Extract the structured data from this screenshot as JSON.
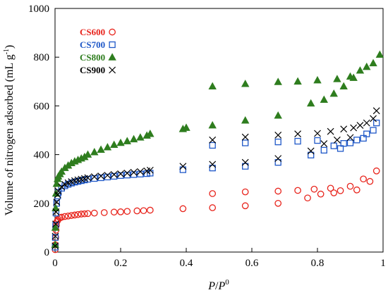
{
  "chart_data": {
    "type": "scatter",
    "xlabel_parts": [
      "P",
      "/",
      "P",
      "0"
    ],
    "ylabel_main": "Volume of nitrogen adsorbed (mL g",
    "ylabel_sup": "-1",
    "ylabel_close": ")",
    "xlim": [
      0,
      1
    ],
    "ylim": [
      0,
      1000
    ],
    "xticks": [
      0,
      0.2,
      0.4,
      0.6,
      0.8,
      1
    ],
    "xtick_labels": [
      "0",
      "0.2",
      "0.4",
      "0.6",
      "0.8",
      "1"
    ],
    "yticks": [
      0,
      200,
      400,
      600,
      800,
      1000
    ],
    "ytick_labels": [
      "0",
      "200",
      "400",
      "600",
      "800",
      "1000"
    ],
    "grid": false,
    "legend_placement": "top-left",
    "series": [
      {
        "name": "CS600",
        "marker": "circle",
        "color": "#e8241c",
        "x": [
          0.0005,
          0.001,
          0.002,
          0.003,
          0.004,
          0.006,
          0.008,
          0.01,
          0.015,
          0.02,
          0.03,
          0.04,
          0.05,
          0.06,
          0.07,
          0.08,
          0.09,
          0.1,
          0.12,
          0.15,
          0.18,
          0.2,
          0.22,
          0.25,
          0.27,
          0.29,
          0.39,
          0.48,
          0.48,
          0.58,
          0.58,
          0.68,
          0.68,
          0.74,
          0.77,
          0.79,
          0.81,
          0.84,
          0.85,
          0.87,
          0.9,
          0.92,
          0.94,
          0.96,
          0.98
        ],
        "y": [
          10,
          30,
          60,
          90,
          110,
          125,
          130,
          135,
          140,
          143,
          146,
          148,
          150,
          152,
          154,
          156,
          157,
          158,
          160,
          162,
          164,
          165,
          167,
          169,
          170,
          172,
          178,
          182,
          240,
          190,
          247,
          200,
          250,
          253,
          222,
          258,
          238,
          262,
          243,
          252,
          270,
          255,
          300,
          290,
          333
        ]
      },
      {
        "name": "CS700",
        "marker": "square",
        "color": "#1f58c8",
        "x": [
          0.0005,
          0.001,
          0.002,
          0.003,
          0.005,
          0.008,
          0.01,
          0.02,
          0.03,
          0.04,
          0.05,
          0.06,
          0.07,
          0.08,
          0.09,
          0.1,
          0.12,
          0.14,
          0.16,
          0.18,
          0.2,
          0.22,
          0.24,
          0.26,
          0.28,
          0.29,
          0.39,
          0.48,
          0.48,
          0.58,
          0.58,
          0.68,
          0.68,
          0.74,
          0.78,
          0.8,
          0.82,
          0.85,
          0.87,
          0.88,
          0.9,
          0.92,
          0.94,
          0.95,
          0.97,
          0.98
        ],
        "y": [
          20,
          60,
          110,
          160,
          200,
          230,
          245,
          262,
          272,
          278,
          283,
          287,
          290,
          293,
          296,
          299,
          302,
          305,
          308,
          311,
          314,
          316,
          318,
          320,
          322,
          324,
          338,
          345,
          438,
          352,
          448,
          368,
          452,
          455,
          398,
          458,
          418,
          436,
          425,
          446,
          448,
          460,
          467,
          485,
          500,
          530
        ]
      },
      {
        "name": "CS800",
        "marker": "triangle",
        "color": "#2e7d1e",
        "x": [
          0.0005,
          0.001,
          0.002,
          0.003,
          0.005,
          0.008,
          0.01,
          0.015,
          0.02,
          0.03,
          0.04,
          0.05,
          0.06,
          0.07,
          0.08,
          0.09,
          0.1,
          0.12,
          0.14,
          0.16,
          0.18,
          0.2,
          0.22,
          0.24,
          0.26,
          0.28,
          0.29,
          0.39,
          0.4,
          0.48,
          0.48,
          0.58,
          0.58,
          0.68,
          0.68,
          0.74,
          0.78,
          0.8,
          0.82,
          0.85,
          0.86,
          0.88,
          0.9,
          0.91,
          0.93,
          0.95,
          0.97,
          0.99
        ],
        "y": [
          30,
          100,
          180,
          240,
          280,
          300,
          310,
          320,
          330,
          345,
          355,
          365,
          372,
          378,
          384,
          390,
          400,
          410,
          420,
          430,
          440,
          448,
          455,
          463,
          470,
          478,
          485,
          505,
          510,
          520,
          680,
          540,
          690,
          560,
          698,
          700,
          610,
          705,
          625,
          650,
          710,
          680,
          720,
          715,
          745,
          760,
          775,
          810
        ]
      },
      {
        "name": "CS900",
        "marker": "x",
        "color": "#000000",
        "x": [
          0.0005,
          0.001,
          0.002,
          0.003,
          0.005,
          0.008,
          0.01,
          0.02,
          0.03,
          0.04,
          0.05,
          0.06,
          0.07,
          0.08,
          0.09,
          0.1,
          0.12,
          0.14,
          0.16,
          0.18,
          0.2,
          0.22,
          0.24,
          0.26,
          0.28,
          0.29,
          0.39,
          0.48,
          0.48,
          0.58,
          0.58,
          0.68,
          0.68,
          0.74,
          0.78,
          0.8,
          0.82,
          0.84,
          0.86,
          0.88,
          0.9,
          0.91,
          0.93,
          0.95,
          0.97,
          0.98
        ],
        "y": [
          25,
          65,
          115,
          165,
          205,
          235,
          250,
          268,
          278,
          284,
          289,
          293,
          296,
          299,
          302,
          305,
          309,
          312,
          315,
          318,
          321,
          324,
          327,
          330,
          333,
          336,
          352,
          360,
          460,
          368,
          472,
          384,
          480,
          485,
          415,
          487,
          445,
          495,
          460,
          505,
          470,
          510,
          520,
          530,
          548,
          580
        ]
      }
    ]
  }
}
